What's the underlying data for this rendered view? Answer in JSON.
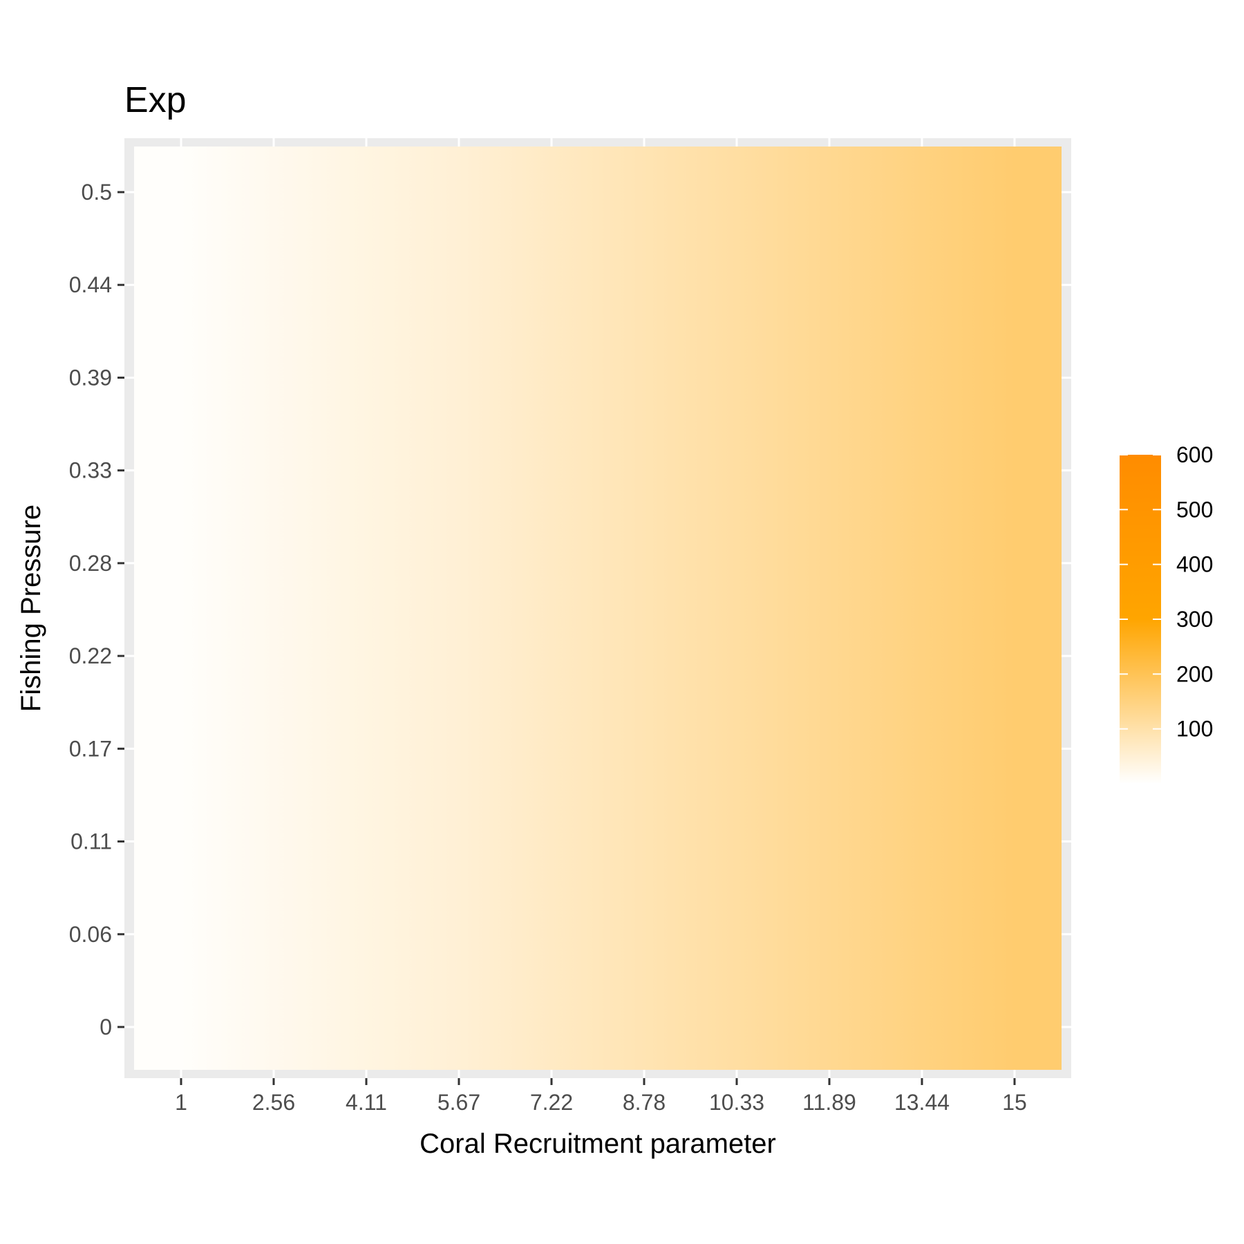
{
  "chart_data": {
    "type": "heatmap",
    "title": "Exp",
    "xlabel": "Coral Recruitment parameter",
    "ylabel": "Fishing Pressure",
    "x_tick_labels": [
      "1",
      "2.56",
      "4.11",
      "5.67",
      "7.22",
      "8.78",
      "10.33",
      "11.89",
      "13.44",
      "15"
    ],
    "y_tick_labels": [
      "0",
      "0.06",
      "0.11",
      "0.17",
      "0.22",
      "0.28",
      "0.33",
      "0.39",
      "0.44",
      "0.5"
    ],
    "x": [
      1,
      2.56,
      4.11,
      5.67,
      7.22,
      8.78,
      10.33,
      11.89,
      13.44,
      15
    ],
    "y": [
      0,
      0.06,
      0.11,
      0.17,
      0.22,
      0.28,
      0.33,
      0.39,
      0.44,
      0.5
    ],
    "values_by_x": [
      5,
      20,
      35,
      50,
      70,
      90,
      110,
      130,
      150,
      170
    ],
    "values_constant_in_y": true,
    "colorbar": {
      "ticks": [
        100,
        200,
        300,
        400,
        500,
        600
      ],
      "range": [
        0,
        600
      ],
      "color_stops": [
        {
          "value": 0,
          "color": "#ffffff"
        },
        {
          "value": 300,
          "color": "#ffa500"
        },
        {
          "value": 600,
          "color": "#ff8c00"
        }
      ],
      "placement": "right"
    },
    "panel_background": "#ebebeb",
    "grid": true,
    "grid_color": "#ffffff"
  }
}
